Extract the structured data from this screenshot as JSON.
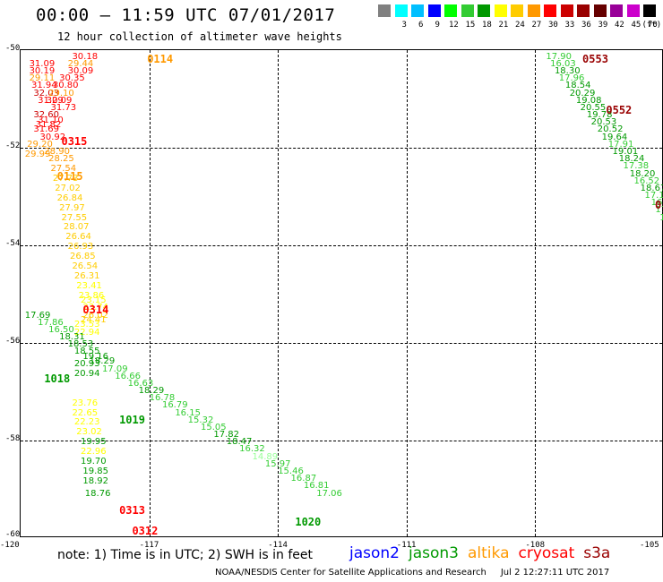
{
  "header": {
    "title": "00:00 – 11:59 UTC 07/01/2017",
    "subtitle": "12 hour collection of altimeter wave heights"
  },
  "legend": {
    "unit": "(ft)",
    "entries": [
      {
        "label": "",
        "color": "#808080"
      },
      {
        "label": "3",
        "color": "#00ffff"
      },
      {
        "label": "6",
        "color": "#00bfff"
      },
      {
        "label": "9",
        "color": "#0000ff"
      },
      {
        "label": "12",
        "color": "#00ff00"
      },
      {
        "label": "15",
        "color": "#33cc33"
      },
      {
        "label": "18",
        "color": "#009900"
      },
      {
        "label": "21",
        "color": "#ffff00"
      },
      {
        "label": "24",
        "color": "#ffcc00"
      },
      {
        "label": "27",
        "color": "#ff9900"
      },
      {
        "label": "30",
        "color": "#ff0000"
      },
      {
        "label": "33",
        "color": "#cc0000"
      },
      {
        "label": "36",
        "color": "#990000"
      },
      {
        "label": "39",
        "color": "#660000"
      },
      {
        "label": "42",
        "color": "#990099"
      },
      {
        "label": "45",
        "color": "#cc00cc"
      },
      {
        "label": "70",
        "color": "#000000"
      }
    ]
  },
  "axes": {
    "y_labels": [
      "-50",
      "-52",
      "-54",
      "-56",
      "-58",
      "-60"
    ],
    "x_labels": [
      "-120",
      "-117",
      "-114",
      "-111",
      "-108",
      "-105"
    ]
  },
  "passes": [
    {
      "label": "0114",
      "color": "#ff9900",
      "lon": -117.05,
      "lat": -50.05
    },
    {
      "label": "0315",
      "color": "#ff0000",
      "lon": -119.05,
      "lat": -51.75
    },
    {
      "label": "0115",
      "color": "#ff9900",
      "lon": -119.15,
      "lat": -52.45
    },
    {
      "label": "0314",
      "color": "#ff0000",
      "lon": -118.55,
      "lat": -55.2
    },
    {
      "label": "1018",
      "color": "#009900",
      "lon": -119.45,
      "lat": -56.6
    },
    {
      "label": "1019",
      "color": "#009900",
      "lon": -117.7,
      "lat": -57.45
    },
    {
      "label": "0313",
      "color": "#ff0000",
      "lon": -117.7,
      "lat": -59.3
    },
    {
      "label": "1020",
      "color": "#009900",
      "lon": -113.6,
      "lat": -59.55
    },
    {
      "label": "0312",
      "color": "#ff0000",
      "lon": -117.4,
      "lat": -60.0
    },
    {
      "label": "0553",
      "color": "#990000",
      "lon": -106.9,
      "lat": -50.05
    },
    {
      "label": "0552",
      "color": "#990000",
      "lon": -106.35,
      "lat": -51.1
    }
  ],
  "tracks": [
    {
      "name": "cryosat-0315-0114",
      "points": [
        {
          "v": "30.18",
          "c": "#ff0000",
          "lon": -118.8,
          "lat": -50.05
        },
        {
          "v": "31.09",
          "c": "#ff0000",
          "lon": -119.8,
          "lat": -50.2
        },
        {
          "v": "29.44",
          "c": "#ff9900",
          "lon": -118.9,
          "lat": -50.2
        },
        {
          "v": "30.19",
          "c": "#ff0000",
          "lon": -119.8,
          "lat": -50.35
        },
        {
          "v": "30.09",
          "c": "#ff0000",
          "lon": -118.9,
          "lat": -50.35
        },
        {
          "v": "29.11",
          "c": "#ff9900",
          "lon": -119.8,
          "lat": -50.5
        },
        {
          "v": "30.35",
          "c": "#ff0000",
          "lon": -119.1,
          "lat": -50.5
        },
        {
          "v": "31.94",
          "c": "#ff0000",
          "lon": -119.75,
          "lat": -50.65
        },
        {
          "v": "30.80",
          "c": "#ff0000",
          "lon": -119.25,
          "lat": -50.65
        },
        {
          "v": "32.03",
          "c": "#cc0000",
          "lon": -119.7,
          "lat": -50.8
        },
        {
          "v": "29.10",
          "c": "#ff9900",
          "lon": -119.35,
          "lat": -50.8
        },
        {
          "v": "31.29",
          "c": "#ff0000",
          "lon": -119.6,
          "lat": -50.95
        },
        {
          "v": "30.09",
          "c": "#ff0000",
          "lon": -119.4,
          "lat": -50.95
        },
        {
          "v": "31.73",
          "c": "#ff0000",
          "lon": -119.3,
          "lat": -51.1
        },
        {
          "v": "32.60",
          "c": "#cc0000",
          "lon": -119.7,
          "lat": -51.25
        },
        {
          "v": "31.10",
          "c": "#ff0000",
          "lon": -119.6,
          "lat": -51.35
        },
        {
          "v": "31.82",
          "c": "#ff0000",
          "lon": -119.65,
          "lat": -51.45
        },
        {
          "v": "31.69",
          "c": "#ff0000",
          "lon": -119.7,
          "lat": -51.55
        },
        {
          "v": "30.92",
          "c": "#ff0000",
          "lon": -119.55,
          "lat": -51.7
        }
      ]
    },
    {
      "name": "altika-0115-0312",
      "points": [
        {
          "v": "29.20",
          "c": "#ff9900",
          "lon": -119.85,
          "lat": -51.85
        },
        {
          "v": "28.90",
          "c": "#ff9900",
          "lon": -119.45,
          "lat": -52.0
        },
        {
          "v": "29.99",
          "c": "#ff9900",
          "lon": -119.9,
          "lat": -52.05
        },
        {
          "v": "28.25",
          "c": "#ff9900",
          "lon": -119.35,
          "lat": -52.15
        },
        {
          "v": "27.54",
          "c": "#ff9900",
          "lon": -119.3,
          "lat": -52.35
        },
        {
          "v": "27.73",
          "c": "#ffcc00",
          "lon": -119.25,
          "lat": -52.55
        },
        {
          "v": "27.02",
          "c": "#ffcc00",
          "lon": -119.2,
          "lat": -52.75
        },
        {
          "v": "26.84",
          "c": "#ffcc00",
          "lon": -119.15,
          "lat": -52.95
        },
        {
          "v": "27.97",
          "c": "#ffcc00",
          "lon": -119.1,
          "lat": -53.15
        },
        {
          "v": "27.55",
          "c": "#ffcc00",
          "lon": -119.05,
          "lat": -53.35
        },
        {
          "v": "28.07",
          "c": "#ffcc00",
          "lon": -119.0,
          "lat": -53.55
        },
        {
          "v": "26.64",
          "c": "#ffcc00",
          "lon": -118.95,
          "lat": -53.75
        },
        {
          "v": "26.93",
          "c": "#ffcc00",
          "lon": -118.9,
          "lat": -53.95
        },
        {
          "v": "26.85",
          "c": "#ffcc00",
          "lon": -118.85,
          "lat": -54.15
        },
        {
          "v": "26.54",
          "c": "#ffcc00",
          "lon": -118.8,
          "lat": -54.35
        },
        {
          "v": "26.31",
          "c": "#ffcc00",
          "lon": -118.75,
          "lat": -54.55
        },
        {
          "v": "23.41",
          "c": "#ffff00",
          "lon": -118.7,
          "lat": -54.75
        },
        {
          "v": "23.86",
          "c": "#ffff00",
          "lon": -118.65,
          "lat": -54.95
        },
        {
          "v": "23.15",
          "c": "#ffff00",
          "lon": -118.6,
          "lat": -55.05
        },
        {
          "v": "23.74",
          "c": "#ffff00",
          "lon": -118.55,
          "lat": -55.2
        },
        {
          "v": "26.02",
          "c": "#ffcc00",
          "lon": -118.55,
          "lat": -55.35
        },
        {
          "v": "24.41",
          "c": "#ffcc00",
          "lon": -118.6,
          "lat": -55.45
        },
        {
          "v": "23.53",
          "c": "#ffff00",
          "lon": -118.75,
          "lat": -55.55
        },
        {
          "v": "22.94",
          "c": "#ffff00",
          "lon": -118.75,
          "lat": -55.7
        },
        {
          "v": "23.76",
          "c": "#ffff00",
          "lon": -118.8,
          "lat": -57.15
        },
        {
          "v": "22.65",
          "c": "#ffff00",
          "lon": -118.8,
          "lat": -57.35
        },
        {
          "v": "22.23",
          "c": "#ffff00",
          "lon": -118.75,
          "lat": -57.55
        },
        {
          "v": "23.02",
          "c": "#ffff00",
          "lon": -118.7,
          "lat": -57.75
        },
        {
          "v": "22.96",
          "c": "#ffff00",
          "lon": -118.6,
          "lat": -58.15
        }
      ]
    },
    {
      "name": "jason3-1018-1020",
      "points": [
        {
          "v": "17.69",
          "c": "#009900",
          "lon": -119.9,
          "lat": -55.35
        },
        {
          "v": "17.86",
          "c": "#33cc33",
          "lon": -119.6,
          "lat": -55.5
        },
        {
          "v": "16.50",
          "c": "#33cc33",
          "lon": -119.35,
          "lat": -55.65
        },
        {
          "v": "18.31",
          "c": "#009900",
          "lon": -119.1,
          "lat": -55.8
        },
        {
          "v": "18.53",
          "c": "#009900",
          "lon": -118.9,
          "lat": -55.95
        },
        {
          "v": "18.55",
          "c": "#009900",
          "lon": -118.75,
          "lat": -56.1
        },
        {
          "v": "19.16",
          "c": "#009900",
          "lon": -118.55,
          "lat": -56.2
        },
        {
          "v": "18.29",
          "c": "#009900",
          "lon": -118.4,
          "lat": -56.3
        },
        {
          "v": "20.93",
          "c": "#009900",
          "lon": -118.75,
          "lat": -56.35
        },
        {
          "v": "17.09",
          "c": "#33cc33",
          "lon": -118.1,
          "lat": -56.45
        },
        {
          "v": "20.94",
          "c": "#009900",
          "lon": -118.75,
          "lat": -56.55
        },
        {
          "v": "16.66",
          "c": "#33cc33",
          "lon": -117.8,
          "lat": -56.6
        },
        {
          "v": "16.63",
          "c": "#33cc33",
          "lon": -117.5,
          "lat": -56.75
        },
        {
          "v": "18.29",
          "c": "#009900",
          "lon": -117.25,
          "lat": -56.9
        },
        {
          "v": "16.78",
          "c": "#33cc33",
          "lon": -117.0,
          "lat": -57.05
        },
        {
          "v": "16.79",
          "c": "#33cc33",
          "lon": -116.7,
          "lat": -57.2
        },
        {
          "v": "16.15",
          "c": "#33cc33",
          "lon": -116.4,
          "lat": -57.35
        },
        {
          "v": "15.32",
          "c": "#33cc33",
          "lon": -116.1,
          "lat": -57.5
        },
        {
          "v": "15.05",
          "c": "#33cc33",
          "lon": -115.8,
          "lat": -57.65
        },
        {
          "v": "17.82",
          "c": "#009900",
          "lon": -115.5,
          "lat": -57.8
        },
        {
          "v": "18.47",
          "c": "#009900",
          "lon": -115.2,
          "lat": -57.95
        },
        {
          "v": "16.32",
          "c": "#33cc33",
          "lon": -114.9,
          "lat": -58.1
        },
        {
          "v": "14.89",
          "c": "#99ff99",
          "lon": -114.6,
          "lat": -58.25
        },
        {
          "v": "15.97",
          "c": "#33cc33",
          "lon": -114.3,
          "lat": -58.4
        },
        {
          "v": "15.46",
          "c": "#33cc33",
          "lon": -114.0,
          "lat": -58.55
        },
        {
          "v": "16.87",
          "c": "#33cc33",
          "lon": -113.7,
          "lat": -58.7
        },
        {
          "v": "16.81",
          "c": "#33cc33",
          "lon": -113.4,
          "lat": -58.85
        },
        {
          "v": "17.06",
          "c": "#33cc33",
          "lon": -113.1,
          "lat": -59.0
        }
      ]
    },
    {
      "name": "jason3-1019",
      "points": [
        {
          "v": "19.95",
          "c": "#009900",
          "lon": -118.6,
          "lat": -57.95
        },
        {
          "v": "19.70",
          "c": "#009900",
          "lon": -118.6,
          "lat": -58.35
        },
        {
          "v": "19.85",
          "c": "#009900",
          "lon": -118.55,
          "lat": -58.55
        },
        {
          "v": "18.92",
          "c": "#009900",
          "lon": -118.55,
          "lat": -58.75
        },
        {
          "v": "18.76",
          "c": "#009900",
          "lon": -118.5,
          "lat": -59.0
        }
      ]
    },
    {
      "name": "jason3-0553-0552",
      "points": [
        {
          "v": "17.90",
          "c": "#33cc33",
          "lon": -107.75,
          "lat": -50.05
        },
        {
          "v": "16.03",
          "c": "#33cc33",
          "lon": -107.65,
          "lat": -50.2
        },
        {
          "v": "18.30",
          "c": "#009900",
          "lon": -107.55,
          "lat": -50.35
        },
        {
          "v": "17.96",
          "c": "#33cc33",
          "lon": -107.45,
          "lat": -50.5
        },
        {
          "v": "18.54",
          "c": "#009900",
          "lon": -107.3,
          "lat": -50.65
        },
        {
          "v": "20.29",
          "c": "#009900",
          "lon": -107.2,
          "lat": -50.8
        },
        {
          "v": "19.08",
          "c": "#009900",
          "lon": -107.05,
          "lat": -50.95
        },
        {
          "v": "20.55",
          "c": "#009900",
          "lon": -106.95,
          "lat": -51.1
        },
        {
          "v": "19.78",
          "c": "#009900",
          "lon": -106.8,
          "lat": -51.25
        },
        {
          "v": "20.53",
          "c": "#009900",
          "lon": -106.7,
          "lat": -51.4
        },
        {
          "v": "20.52",
          "c": "#009900",
          "lon": -106.55,
          "lat": -51.55
        },
        {
          "v": "19.64",
          "c": "#009900",
          "lon": -106.45,
          "lat": -51.7
        },
        {
          "v": "17.91",
          "c": "#33cc33",
          "lon": -106.3,
          "lat": -51.85
        },
        {
          "v": "19.01",
          "c": "#009900",
          "lon": -106.2,
          "lat": -52.0
        },
        {
          "v": "18.24",
          "c": "#009900",
          "lon": -106.05,
          "lat": -52.15
        },
        {
          "v": "17.38",
          "c": "#33cc33",
          "lon": -105.95,
          "lat": -52.3
        },
        {
          "v": "18.20",
          "c": "#009900",
          "lon": -105.8,
          "lat": -52.45
        },
        {
          "v": "16.52",
          "c": "#33cc33",
          "lon": -105.7,
          "lat": -52.6
        },
        {
          "v": "18.67",
          "c": "#009900",
          "lon": -105.55,
          "lat": -52.75
        },
        {
          "v": "17.10",
          "c": "#33cc33",
          "lon": -105.45,
          "lat": -52.9
        },
        {
          "v": "16.09",
          "c": "#33cc33",
          "lon": -105.3,
          "lat": -53.05
        },
        {
          "v": "17.16",
          "c": "#33cc33",
          "lon": -105.2,
          "lat": -53.2
        },
        {
          "v": "17.31",
          "c": "#33cc33",
          "lon": -105.1,
          "lat": -53.35
        },
        {
          "v": "18.1",
          "c": "#009900",
          "lon": -104.95,
          "lat": -53.5
        },
        {
          "v": "17.6",
          "c": "#33cc33",
          "lon": -104.85,
          "lat": -53.65
        },
        {
          "v": "16",
          "c": "#33cc33",
          "lon": -104.8,
          "lat": -53.8
        }
      ]
    }
  ],
  "edge_mark": {
    "label": "0",
    "color": "#990000",
    "lon": -104.75,
    "lat": -53.05
  },
  "footer": {
    "note": "note: 1) Time is in UTC; 2) SWH is in feet",
    "satellites": [
      {
        "name": "jason2",
        "color": "#0000ff"
      },
      {
        "name": "jason3",
        "color": "#009900"
      },
      {
        "name": "altika",
        "color": "#ff9900"
      },
      {
        "name": "cryosat",
        "color": "#ff0000"
      },
      {
        "name": "s3a",
        "color": "#990000"
      }
    ],
    "credit": "NOAA/NESDIS Center for Satellite Applications and Research",
    "timestamp": "Jul  2 12:27:11 UTC 2017"
  }
}
